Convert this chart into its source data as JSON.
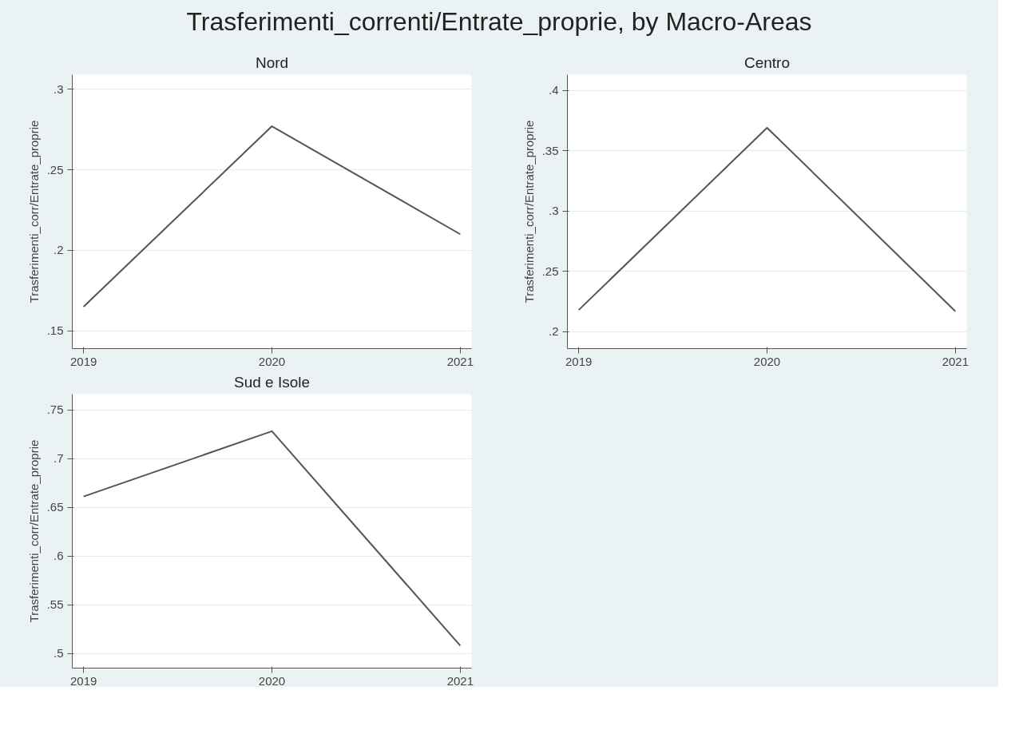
{
  "chart_data": [
    {
      "type": "line",
      "title": "Nord",
      "ylabel": "Trasferimenti_corr/Entrate_proprie",
      "annotations": [
        "Trasferimenti_correnti/Entrate_proprie, by Macro-Areas"
      ],
      "x": [
        2019,
        2020,
        2021
      ],
      "series": [
        {
          "color": "#555555",
          "values": [
            0.165,
            0.277,
            0.21
          ]
        }
      ],
      "xlim": [
        2018.94,
        2021.06
      ],
      "xticks": [
        2019,
        2020,
        2021
      ],
      "ylim": [
        0.139,
        0.309
      ],
      "yticks": [
        {
          "value": 0.15,
          "label": ".15"
        },
        {
          "value": 0.2,
          "label": ".2"
        },
        {
          "value": 0.25,
          "label": ".25"
        },
        {
          "value": 0.3,
          "label": ".3"
        }
      ],
      "grid": "y",
      "marker": "none",
      "line_style": "solid"
    },
    {
      "type": "line",
      "title": "Centro",
      "ylabel": "Trasferimenti_corr/Entrate_proprie",
      "x": [
        2019,
        2020,
        2021
      ],
      "series": [
        {
          "color": "#555555",
          "values": [
            0.218,
            0.369,
            0.217
          ]
        }
      ],
      "xlim": [
        2018.94,
        2021.06
      ],
      "xticks": [
        2019,
        2020,
        2021
      ],
      "ylim": [
        0.186,
        0.413
      ],
      "yticks": [
        {
          "value": 0.2,
          "label": ".2"
        },
        {
          "value": 0.25,
          "label": ".25"
        },
        {
          "value": 0.3,
          "label": ".3"
        },
        {
          "value": 0.35,
          "label": ".35"
        },
        {
          "value": 0.4,
          "label": ".4"
        }
      ],
      "grid": "y",
      "marker": "none",
      "line_style": "solid"
    },
    {
      "type": "line",
      "title": "Sud e Isole",
      "ylabel": "Trasferimenti_corr/Entrate_proprie",
      "x": [
        2019,
        2020,
        2021
      ],
      "series": [
        {
          "color": "#555555",
          "values": [
            0.661,
            0.728,
            0.508
          ]
        }
      ],
      "xlim": [
        2018.94,
        2021.06
      ],
      "xticks": [
        2019,
        2020,
        2021
      ],
      "ylim": [
        0.485,
        0.766
      ],
      "yticks": [
        {
          "value": 0.5,
          "label": ".5"
        },
        {
          "value": 0.55,
          "label": ".55"
        },
        {
          "value": 0.6,
          "label": ".6"
        },
        {
          "value": 0.65,
          "label": ".65"
        },
        {
          "value": 0.7,
          "label": ".7"
        },
        {
          "value": 0.75,
          "label": ".75"
        }
      ],
      "grid": "y",
      "marker": "none",
      "line_style": "solid"
    }
  ]
}
